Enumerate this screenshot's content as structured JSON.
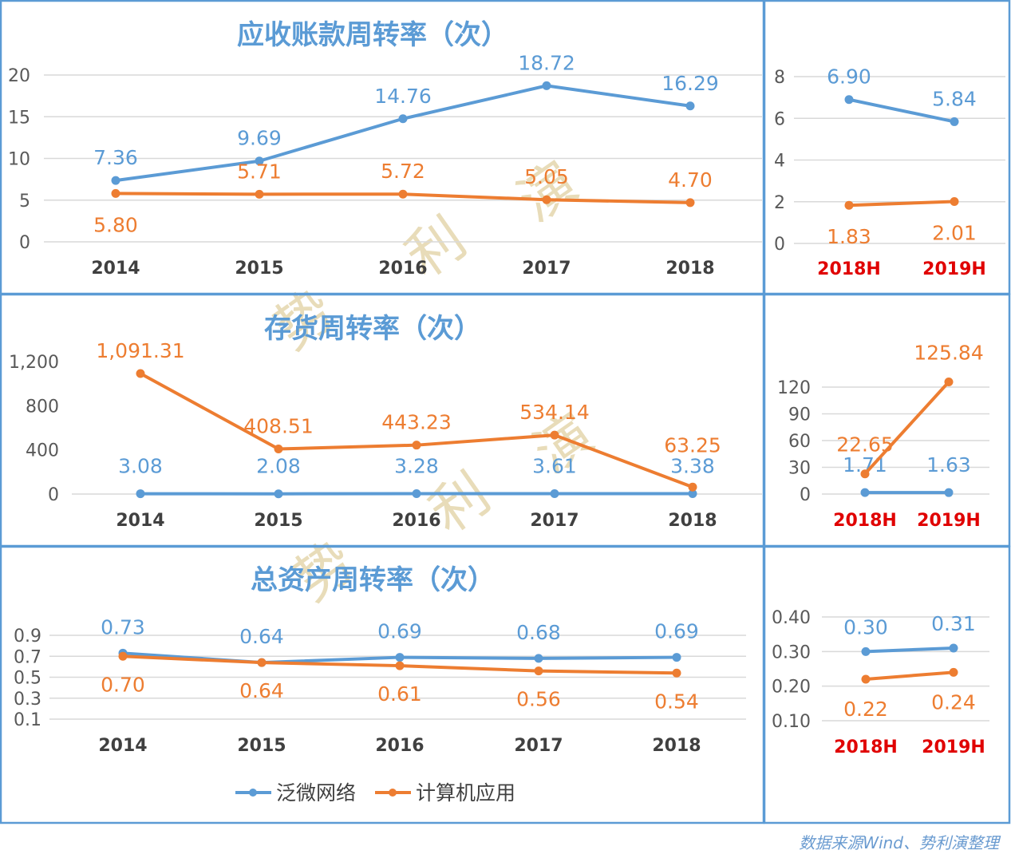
{
  "colors": {
    "series_blue": "#5b9bd5",
    "series_orange": "#ed7d31",
    "border": "#5b9bd5",
    "title": "#5b9bd5",
    "half_year_label": "#e00000"
  },
  "legend": {
    "placement": "bottom",
    "items": [
      {
        "name": "泛微网络",
        "color": "#5b9bd5"
      },
      {
        "name": "计算机应用",
        "color": "#ed7d31"
      }
    ]
  },
  "source": "数据来源Wind、势利演整理",
  "watermark": "势利演",
  "chart_data": [
    {
      "id": "ar-annual",
      "type": "line",
      "title": "应收账款周转率（次）",
      "categories": [
        "2014",
        "2015",
        "2016",
        "2017",
        "2018"
      ],
      "ylim": [
        0,
        20
      ],
      "yticks": [
        "0",
        "5",
        "10",
        "15",
        "20"
      ],
      "grid": true,
      "series": [
        {
          "name": "泛微网络",
          "color": "#5b9bd5",
          "values": [
            7.36,
            9.69,
            14.76,
            18.72,
            16.29
          ],
          "labels": [
            "7.36",
            "9.69",
            "14.76",
            "18.72",
            "16.29"
          ],
          "label_position": "above"
        },
        {
          "name": "计算机应用",
          "color": "#ed7d31",
          "values": [
            5.8,
            5.71,
            5.72,
            5.05,
            4.7
          ],
          "labels": [
            "5.80",
            "5.71",
            "5.72",
            "5.05",
            "4.70"
          ],
          "label_position": "above"
        }
      ]
    },
    {
      "id": "ar-half",
      "type": "line",
      "title": "",
      "categories": [
        "2018H",
        "2019H"
      ],
      "ylim": [
        0,
        8
      ],
      "yticks": [
        "0",
        "2",
        "4",
        "6",
        "8"
      ],
      "grid": true,
      "series": [
        {
          "name": "泛微网络",
          "color": "#5b9bd5",
          "values": [
            6.9,
            5.84
          ],
          "labels": [
            "6.90",
            "5.84"
          ],
          "label_position": "above"
        },
        {
          "name": "计算机应用",
          "color": "#ed7d31",
          "values": [
            1.83,
            2.01
          ],
          "labels": [
            "1.83",
            "2.01"
          ],
          "label_position": "below"
        }
      ]
    },
    {
      "id": "inv-annual",
      "type": "line",
      "title": "存货周转率（次）",
      "categories": [
        "2014",
        "2015",
        "2016",
        "2017",
        "2018"
      ],
      "ylim": [
        0,
        1200
      ],
      "yticks": [
        "0",
        "400",
        "800",
        "1,200"
      ],
      "grid": false,
      "series": [
        {
          "name": "泛微网络",
          "color": "#5b9bd5",
          "values": [
            3.08,
            2.08,
            3.28,
            3.61,
            3.38
          ],
          "labels": [
            "3.08",
            "2.08",
            "3.28",
            "3.61",
            "3.38"
          ],
          "label_position": "above"
        },
        {
          "name": "计算机应用",
          "color": "#ed7d31",
          "values": [
            1091.31,
            408.51,
            443.23,
            534.14,
            63.25
          ],
          "labels": [
            "1,091.31",
            "408.51",
            "443.23",
            "534.14",
            "63.25"
          ],
          "label_position": "above"
        }
      ]
    },
    {
      "id": "inv-half",
      "type": "line",
      "title": "",
      "categories": [
        "2018H",
        "2019H"
      ],
      "ylim": [
        0,
        120
      ],
      "yticks": [
        "0",
        "30",
        "60",
        "90",
        "120"
      ],
      "grid": true,
      "series": [
        {
          "name": "泛微网络",
          "color": "#5b9bd5",
          "values": [
            1.71,
            1.63
          ],
          "labels": [
            "1.71",
            "1.63"
          ],
          "label_position": "above"
        },
        {
          "name": "计算机应用",
          "color": "#ed7d31",
          "values": [
            22.65,
            125.84
          ],
          "labels": [
            "22.65",
            "125.84"
          ],
          "label_position": "above"
        }
      ]
    },
    {
      "id": "asset-annual",
      "type": "line",
      "title": "总资产周转率（次）",
      "categories": [
        "2014",
        "2015",
        "2016",
        "2017",
        "2018"
      ],
      "ylim": [
        0.1,
        0.9
      ],
      "yticks": [
        "0.1",
        "0.3",
        "0.5",
        "0.7",
        "0.9"
      ],
      "grid": true,
      "series": [
        {
          "name": "泛微网络",
          "color": "#5b9bd5",
          "values": [
            0.73,
            0.64,
            0.69,
            0.68,
            0.69
          ],
          "labels": [
            "0.73",
            "0.64",
            "0.69",
            "0.68",
            "0.69"
          ],
          "label_position": "above"
        },
        {
          "name": "计算机应用",
          "color": "#ed7d31",
          "values": [
            0.7,
            0.64,
            0.61,
            0.56,
            0.54
          ],
          "labels": [
            "0.70",
            "0.64",
            "0.61",
            "0.56",
            "0.54"
          ],
          "label_position": "below"
        }
      ]
    },
    {
      "id": "asset-half",
      "type": "line",
      "title": "",
      "categories": [
        "2018H",
        "2019H"
      ],
      "ylim": [
        0.1,
        0.4
      ],
      "yticks": [
        "0.10",
        "0.20",
        "0.30",
        "0.40"
      ],
      "grid": true,
      "series": [
        {
          "name": "泛微网络",
          "color": "#5b9bd5",
          "values": [
            0.3,
            0.31
          ],
          "labels": [
            "0.30",
            "0.31"
          ],
          "label_position": "above"
        },
        {
          "name": "计算机应用",
          "color": "#ed7d31",
          "values": [
            0.22,
            0.24
          ],
          "labels": [
            "0.22",
            "0.24"
          ],
          "label_position": "below"
        }
      ]
    }
  ]
}
